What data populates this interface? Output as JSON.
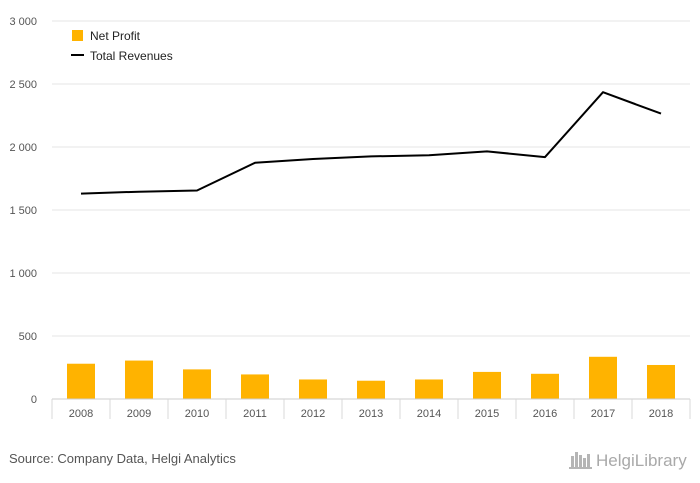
{
  "chart_data": {
    "type": "bar",
    "categories": [
      "2008",
      "2009",
      "2010",
      "2011",
      "2012",
      "2013",
      "2014",
      "2015",
      "2016",
      "2017",
      "2018"
    ],
    "series": [
      {
        "name": "Net Profit",
        "type": "bar",
        "color": "#FFB300",
        "values": [
          280,
          305,
          235,
          195,
          155,
          145,
          155,
          215,
          200,
          335,
          270
        ]
      },
      {
        "name": "Total Revenues",
        "type": "line",
        "color": "#000000",
        "values": [
          1630,
          1645,
          1655,
          1875,
          1905,
          1925,
          1935,
          1965,
          1920,
          2435,
          2265
        ]
      }
    ],
    "yticks": [
      "0",
      "500",
      "1 000",
      "1 500",
      "2 000",
      "2 500",
      "3 000"
    ],
    "ylim": [
      0,
      3000
    ],
    "grid": true,
    "legend_position": "top-left"
  },
  "legend": {
    "net_profit": "Net Profit",
    "total_revenues": "Total Revenues"
  },
  "footer": {
    "source": "Source: Company Data, Helgi Analytics",
    "brand": "HelgiLibrary"
  },
  "colors": {
    "bar": "#FFB300",
    "line": "#000000",
    "grid": "#e6e6e6"
  }
}
